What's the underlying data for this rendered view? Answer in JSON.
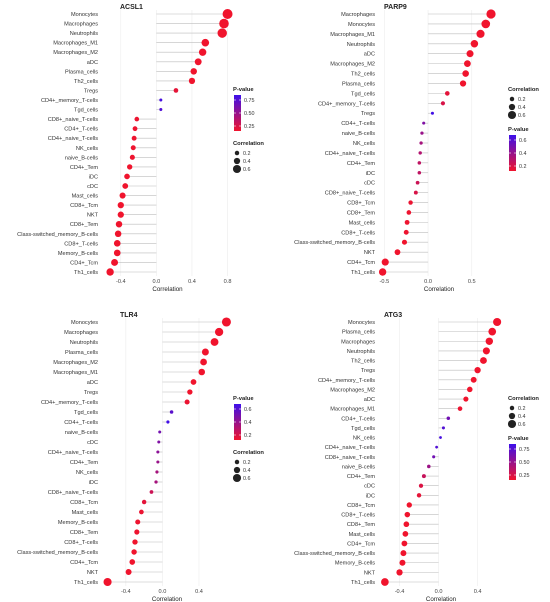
{
  "chart_data": [
    {
      "type": "lollipop",
      "title": "ACSL1",
      "xlabel": "Correlation",
      "xlim": [
        -0.6,
        0.85
      ],
      "xticks": [
        -0.4,
        0.0,
        0.4,
        0.8
      ],
      "xtick_labels": [
        "-0.4",
        "0.0",
        "0.4",
        "0.8"
      ],
      "categories": [
        "Monocytes",
        "Macrophages",
        "Neutrophils",
        "Macrophages_M1",
        "Macrophages_M2",
        "aDC",
        "Plasma_cells",
        "Th2_cells",
        "Tregs",
        "CD4+_memory_T-cells",
        "Tgd_cells",
        "CD8+_naive_T-cells",
        "CD4+_T-cells",
        "CD4+_naive_T-cells",
        "NK_cells",
        "naive_B-cells",
        "CD4+_Tem",
        "iDC",
        "cDC",
        "Mast_cells",
        "CD8+_Tcm",
        "NKT",
        "CD8+_Tem",
        "Class-switched_memory_B-cells",
        "CD8+_T-cells",
        "Memory_B-cells",
        "CD4+_Tcm",
        "Th1_cells"
      ],
      "values": [
        0.8,
        0.76,
        0.74,
        0.55,
        0.52,
        0.47,
        0.42,
        0.4,
        0.22,
        0.05,
        0.05,
        -0.22,
        -0.24,
        -0.25,
        -0.26,
        -0.27,
        -0.3,
        -0.33,
        -0.35,
        -0.38,
        -0.4,
        -0.4,
        -0.42,
        -0.43,
        -0.44,
        -0.44,
        -0.47,
        -0.52
      ],
      "pvalues": [
        0,
        0,
        0,
        0,
        0,
        0,
        0,
        0,
        0.05,
        0.8,
        0.75,
        0.02,
        0.01,
        0.01,
        0.01,
        0.01,
        0,
        0,
        0,
        0,
        0,
        0,
        0,
        0,
        0,
        0,
        0,
        0
      ],
      "legend_order": [
        "pvalue",
        "correlation"
      ],
      "pvalue_legend": {
        "title": "P-value",
        "ticks": [
          "0.75",
          "0.50",
          "0.25"
        ],
        "min": 0,
        "max": 0.85
      },
      "corr_legend": {
        "title": "Correlation",
        "ticks": [
          "0.2",
          "0.4",
          "0.6"
        ]
      }
    },
    {
      "type": "lollipop",
      "title": "PARP9",
      "xlabel": "Correlation",
      "xlim": [
        -0.55,
        0.8
      ],
      "xticks": [
        -0.5,
        0.0,
        0.5
      ],
      "xtick_labels": [
        "-0.5",
        "0.0",
        "0.5"
      ],
      "categories": [
        "Macrophages",
        "Monocytes",
        "Macrophages_M1",
        "Neutrophils",
        "aDC",
        "Macrophages_M2",
        "Th2_cells",
        "Plasma_cells",
        "Tgd_cells",
        "CD4+_memory_T-cells",
        "Tregs",
        "CD4+_T-cells",
        "naive_B-cells",
        "NK_cells",
        "CD4+_naive_T-cells",
        "CD4+_Tem",
        "iDC",
        "cDC",
        "CD8+_naive_T-cells",
        "CD8+_Tcm",
        "CD8+_Tem",
        "Mast_cells",
        "CD8+_T-cells",
        "Class-switched_memory_B-cells",
        "NKT",
        "CD4+_Tcm",
        "Th1_cells"
      ],
      "values": [
        0.72,
        0.66,
        0.6,
        0.53,
        0.48,
        0.45,
        0.43,
        0.4,
        0.22,
        0.17,
        0.05,
        -0.05,
        -0.07,
        -0.08,
        -0.09,
        -0.1,
        -0.1,
        -0.12,
        -0.14,
        -0.2,
        -0.22,
        -0.24,
        -0.25,
        -0.27,
        -0.35,
        -0.49,
        -0.52
      ],
      "pvalues": [
        0,
        0,
        0,
        0,
        0,
        0,
        0,
        0,
        0.05,
        0.1,
        0.7,
        0.45,
        0.35,
        0.3,
        0.25,
        0.2,
        0.2,
        0.15,
        0.1,
        0.02,
        0.01,
        0.01,
        0.01,
        0,
        0,
        0,
        0
      ],
      "legend_order": [
        "correlation",
        "pvalue"
      ],
      "pvalue_legend": {
        "title": "P-value",
        "ticks": [
          "0.6",
          "0.4",
          "0.2"
        ],
        "min": 0,
        "max": 0.72
      },
      "corr_legend": {
        "title": "Correlation",
        "ticks": [
          "0.2",
          "0.4",
          "0.6"
        ]
      }
    },
    {
      "type": "lollipop",
      "title": "TLR4",
      "xlabel": "Correlation",
      "xlim": [
        -0.65,
        0.75
      ],
      "xticks": [
        -0.4,
        0.0,
        0.4
      ],
      "xtick_labels": [
        "-0.4",
        "0.0",
        "0.4"
      ],
      "categories": [
        "Monocytes",
        "Macrophages",
        "Neutrophils",
        "Plasma_cells",
        "Macrophages_M2",
        "Macrophages_M1",
        "aDC",
        "Tregs",
        "CD4+_memory_T-cells",
        "Tgd_cells",
        "CD4+_T-cells",
        "naive_B-cells",
        "cDC",
        "CD4+_naive_T-cells",
        "CD4+_Tem",
        "NK_cells",
        "iDC",
        "CD8+_naive_T-cells",
        "CD8+_Tcm",
        "Mast_cells",
        "Memory_B-cells",
        "CD8+_Tem",
        "CD8+_T-cells",
        "Class-switched_memory_B-cells",
        "CD4+_Tcm",
        "NKT",
        "Th1_cells"
      ],
      "values": [
        0.7,
        0.62,
        0.57,
        0.47,
        0.45,
        0.43,
        0.34,
        0.3,
        0.27,
        0.1,
        0.06,
        -0.03,
        -0.04,
        -0.05,
        -0.05,
        -0.06,
        -0.07,
        -0.12,
        -0.2,
        -0.23,
        -0.27,
        -0.28,
        -0.3,
        -0.31,
        -0.33,
        -0.37,
        -0.6
      ],
      "pvalues": [
        0,
        0,
        0,
        0,
        0,
        0,
        0,
        0,
        0.02,
        0.6,
        0.7,
        0.5,
        0.45,
        0.4,
        0.35,
        0.3,
        0.3,
        0.15,
        0.05,
        0.02,
        0.01,
        0.01,
        0,
        0,
        0,
        0,
        0
      ],
      "legend_order": [
        "pvalue",
        "correlation"
      ],
      "pvalue_legend": {
        "title": "P-value",
        "ticks": [
          "0.6",
          "0.4",
          "0.2"
        ],
        "min": 0,
        "max": 0.72
      },
      "corr_legend": {
        "title": "Correlation",
        "ticks": [
          "0.2",
          "0.4",
          "0.6"
        ]
      }
    },
    {
      "type": "lollipop",
      "title": "ATG3",
      "xlabel": "Correlation",
      "xlim": [
        -0.6,
        0.65
      ],
      "xticks": [
        -0.4,
        0.0,
        0.4
      ],
      "xtick_labels": [
        "-0.4",
        "0.0",
        "0.4"
      ],
      "categories": [
        "Monocytes",
        "Plasma_cells",
        "Macrophages",
        "Neutrophils",
        "Th2_cells",
        "Tregs",
        "CD4+_memory_T-cells",
        "Macrophages_M2",
        "aDC",
        "Macrophages_M1",
        "CD4+_T-cells",
        "Tgd_cells",
        "NK_cells",
        "CD4+_naive_T-cells",
        "CD8+_naive_T-cells",
        "naive_B-cells",
        "CD4+_Tem",
        "cDC",
        "iDC",
        "CD8+_Tcm",
        "CD8+_T-cells",
        "CD8+_Tem",
        "Mast_cells",
        "CD4+_Tcm",
        "Class-switched_memory_B-cells",
        "Memory_B-cells",
        "NKT",
        "Th1_cells"
      ],
      "values": [
        0.6,
        0.55,
        0.52,
        0.49,
        0.46,
        0.4,
        0.36,
        0.32,
        0.28,
        0.22,
        0.1,
        0.05,
        0.02,
        -0.02,
        -0.05,
        -0.1,
        -0.15,
        -0.18,
        -0.2,
        -0.3,
        -0.32,
        -0.33,
        -0.34,
        -0.35,
        -0.36,
        -0.37,
        -0.4,
        -0.55
      ],
      "pvalues": [
        0,
        0,
        0,
        0,
        0,
        0,
        0,
        0,
        0,
        0.02,
        0.6,
        0.75,
        0.8,
        0.75,
        0.6,
        0.4,
        0.2,
        0.1,
        0.05,
        0,
        0,
        0,
        0,
        0,
        0,
        0,
        0,
        0
      ],
      "legend_order": [
        "correlation",
        "pvalue"
      ],
      "pvalue_legend": {
        "title": "P-value",
        "ticks": [
          "0.75",
          "0.50",
          "0.25"
        ],
        "min": 0,
        "max": 0.85
      },
      "corr_legend": {
        "title": "Correlation",
        "ticks": [
          "0.2",
          "0.4",
          "0.6"
        ]
      }
    }
  ]
}
